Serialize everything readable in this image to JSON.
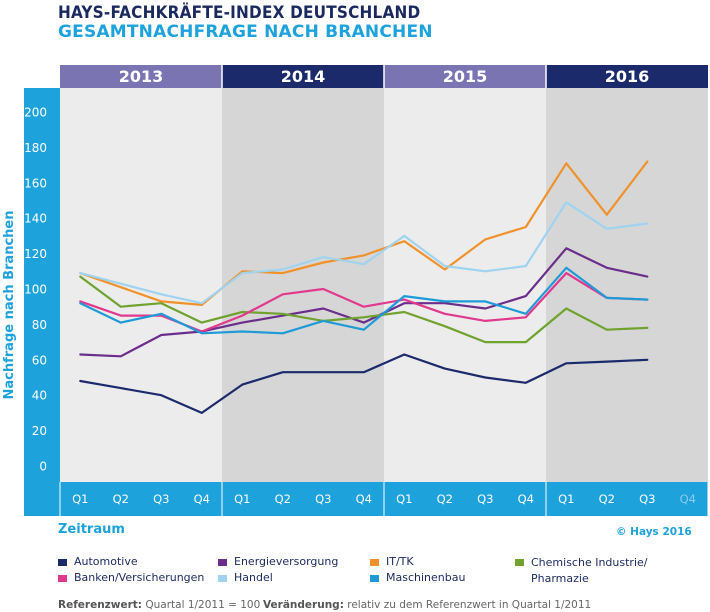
{
  "header": {
    "title": "HAYS-FACHKRÄFTE-INDEX DEUTSCHLAND",
    "subtitle": "GESAMTNACHFRAGE NACH BRANCHEN"
  },
  "xlabel": "Zeitraum",
  "copyright": "© Hays 2016",
  "footer": {
    "ref_label": "Referenzwert:",
    "ref_value": "Quartal 1/2011 = 100",
    "change_label": "Veränderung:",
    "change_value": "relativ zu dem Referenzwert in Quartal 1/2011"
  },
  "colors": {
    "accent": "#1ea2dc",
    "navy": "#1b2a5e",
    "year_band_light": "#7b74b3",
    "year_band_dark": "#1b2a6b"
  },
  "chart_data": {
    "type": "line",
    "title": "",
    "ylabel": "Nachfrage nach Branchen",
    "xlabel": "Zeitraum",
    "ylim": [
      0,
      200
    ],
    "yticks": [
      0,
      20,
      40,
      60,
      80,
      100,
      120,
      140,
      160,
      180,
      200
    ],
    "years": [
      "2013",
      "2014",
      "2015",
      "2016"
    ],
    "categories": [
      "Q1",
      "Q2",
      "Q3",
      "Q4",
      "Q1",
      "Q2",
      "Q3",
      "Q4",
      "Q1",
      "Q2",
      "Q3",
      "Q4",
      "Q1",
      "Q2",
      "Q3",
      "Q4"
    ],
    "series": [
      {
        "name": "Automotive",
        "color": "#1b2a6b",
        "values": [
          48,
          44,
          40,
          30,
          46,
          53,
          53,
          53,
          63,
          55,
          50,
          47,
          58,
          59,
          60,
          null
        ]
      },
      {
        "name": "Energieversorgung",
        "color": "#6b2e8a",
        "values": [
          63,
          62,
          74,
          76,
          81,
          85,
          89,
          81,
          92,
          92,
          89,
          96,
          123,
          112,
          107,
          null
        ]
      },
      {
        "name": "IT/TK",
        "color": "#f0922b",
        "values": [
          109,
          101,
          93,
          91,
          110,
          109,
          115,
          119,
          127,
          111,
          128,
          135,
          171,
          142,
          172,
          null
        ]
      },
      {
        "name": "Chemische Industrie/ Pharmazie",
        "color": "#6fa22e",
        "values": [
          107,
          90,
          92,
          81,
          87,
          86,
          82,
          84,
          87,
          79,
          70,
          70,
          89,
          77,
          78,
          null
        ]
      },
      {
        "name": "Banken/Versicherungen",
        "color": "#e0398e",
        "values": [
          93,
          85,
          85,
          76,
          85,
          97,
          100,
          90,
          94,
          86,
          82,
          84,
          109,
          95,
          94,
          null
        ]
      },
      {
        "name": "Handel",
        "color": "#9fd3ef",
        "values": [
          109,
          103,
          97,
          92,
          109,
          111,
          118,
          114,
          130,
          113,
          110,
          113,
          149,
          134,
          137,
          null
        ]
      },
      {
        "name": "Maschinenbau",
        "color": "#1e9bd7",
        "values": [
          92,
          81,
          86,
          75,
          76,
          75,
          82,
          77,
          96,
          93,
          93,
          86,
          112,
          95,
          94,
          null
        ]
      }
    ],
    "grid": false,
    "legend_position": "bottom"
  }
}
